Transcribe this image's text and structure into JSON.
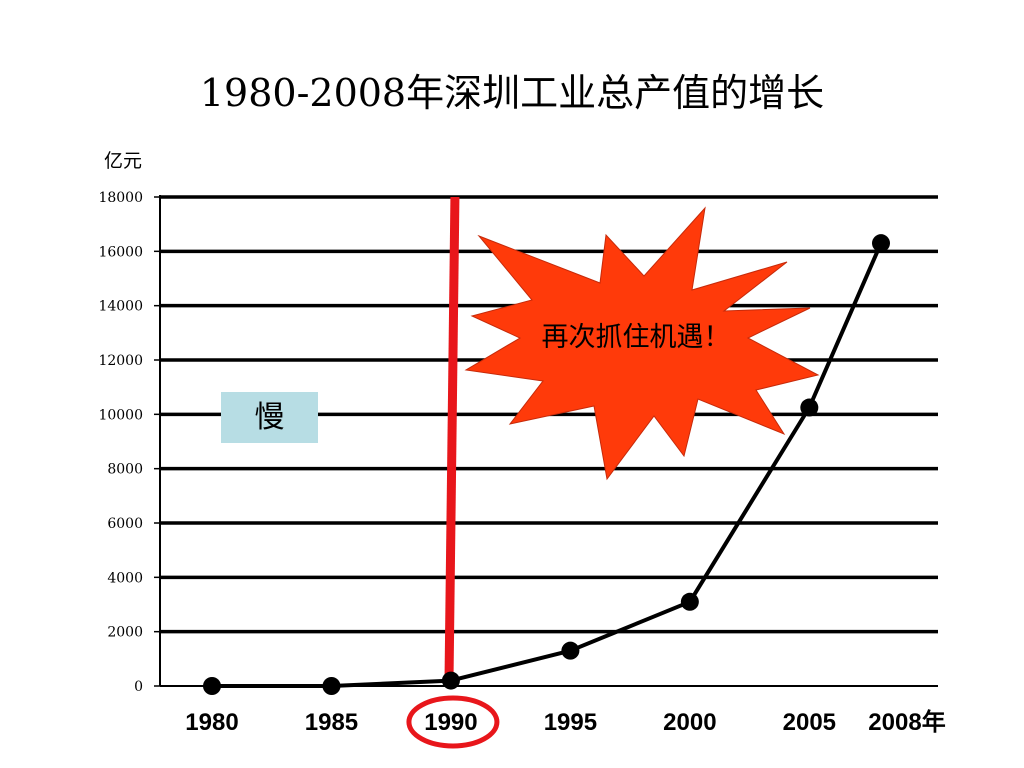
{
  "title": "1980-2008年深圳工业总产值的增长",
  "unit": "亿元",
  "annotations": {
    "slow": "慢",
    "burst": "再次抓住机遇！"
  },
  "colors": {
    "marker_line": "#e8161b",
    "burst_fill": "#ff3a0a",
    "slow_box": "#b7dde4",
    "series": "#000000"
  },
  "chart_data": {
    "type": "line",
    "title": "1980-2008年深圳工业总产值的增长",
    "ylabel": "亿元",
    "xlabel": "",
    "ylim": [
      0,
      18000
    ],
    "yticks": [
      0,
      2000,
      4000,
      6000,
      8000,
      10000,
      12000,
      14000,
      16000,
      18000
    ],
    "x_tick_labels": [
      "1980",
      "1985",
      "1990",
      "1995",
      "2000",
      "2005",
      "2008年"
    ],
    "grid": true,
    "highlight_x": "1990",
    "points": [
      {
        "x": 1980,
        "y": 0
      },
      {
        "x": 1985,
        "y": 0
      },
      {
        "x": 1990,
        "y": 200
      },
      {
        "x": 1995,
        "y": 1300
      },
      {
        "x": 2000,
        "y": 3100
      },
      {
        "x": 2005,
        "y": 10250
      },
      {
        "x": 2008,
        "y": 16300
      }
    ]
  }
}
